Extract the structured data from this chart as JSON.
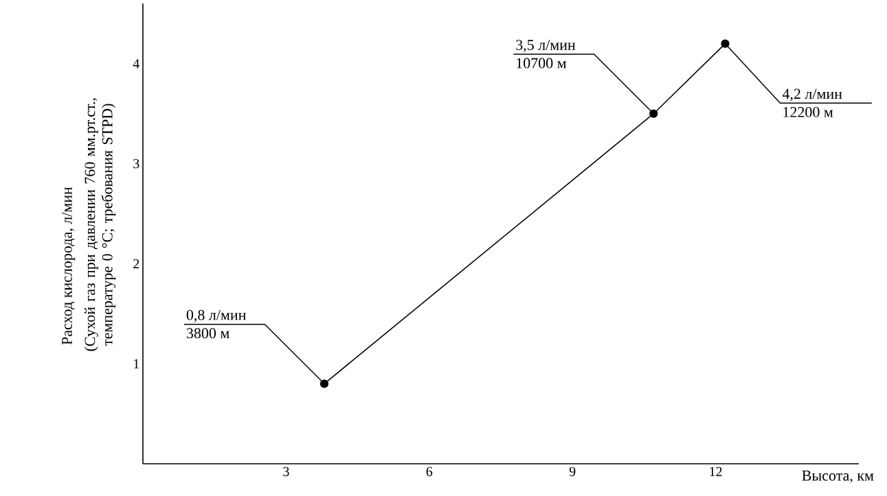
{
  "chart_data": {
    "type": "line",
    "xlabel": "Высота, км",
    "ylabel": "Расход кислорода, л/мин",
    "x": [
      3.8,
      10.7,
      12.2
    ],
    "values": [
      0.8,
      3.5,
      4.2
    ],
    "color": "#000000",
    "marker": "circle",
    "line_style": "solid",
    "xlim": [
      0,
      15
    ],
    "ylim": [
      0,
      4.6
    ],
    "xticks": [
      3,
      6,
      9,
      12
    ],
    "yticks": [
      1,
      2,
      3,
      4
    ],
    "grid": false,
    "annotations": [
      "(Сухой газ при давлении 760 мм.рт.ст., температуре 0 °С; требования STPD)",
      {
        "text": "0,8 л/мин",
        "x": 3.8,
        "y": 0.8
      },
      {
        "text": "3800 м",
        "x": 3.8,
        "y": 0.8
      },
      {
        "text": "3,5 л/мин",
        "x": 10.7,
        "y": 3.5
      },
      {
        "text": "10700 м",
        "x": 10.7,
        "y": 3.5
      },
      {
        "text": "4,2 л/мин",
        "x": 12.2,
        "y": 4.2
      },
      {
        "text": "12200 м",
        "x": 12.2,
        "y": 4.2
      }
    ]
  }
}
